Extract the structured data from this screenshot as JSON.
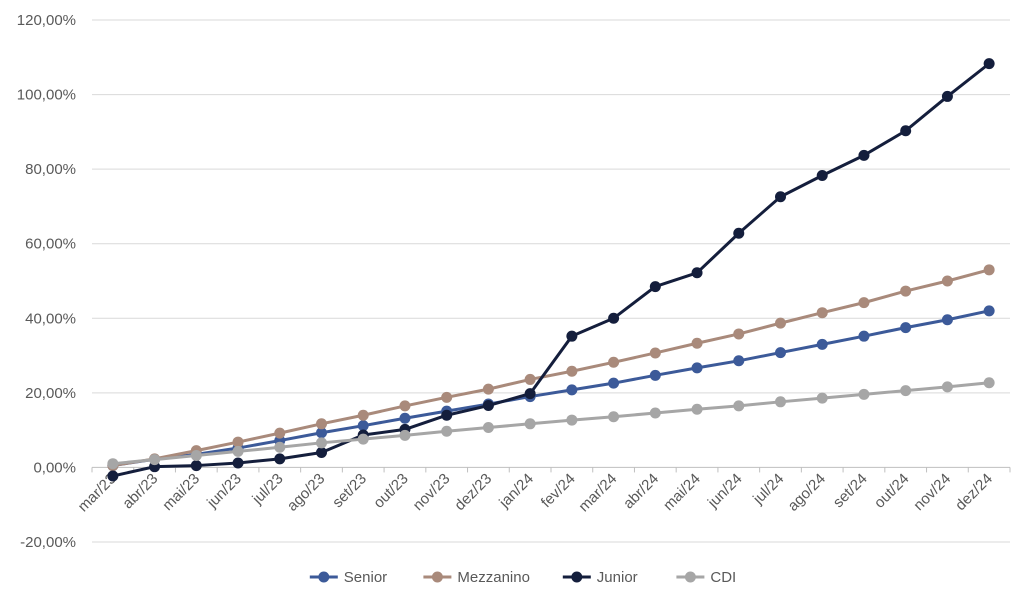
{
  "chart_data": {
    "type": "line",
    "title": "",
    "xlabel": "",
    "ylabel": "",
    "categories": [
      "mar/23",
      "abr/23",
      "mai/23",
      "jun/23",
      "jul/23",
      "ago/23",
      "set/23",
      "out/23",
      "nov/23",
      "dez/23",
      "jan/24",
      "fev/24",
      "mar/24",
      "abr/24",
      "mai/24",
      "jun/24",
      "jul/24",
      "ago/24",
      "set/24",
      "out/24",
      "nov/24",
      "dez/24"
    ],
    "ylim": [
      -20,
      120
    ],
    "yticks": [
      -20,
      0,
      20,
      40,
      60,
      80,
      100,
      120
    ],
    "ytick_labels": [
      "-20,00%",
      "0,00%",
      "20,00%",
      "40,00%",
      "60,00%",
      "80,00%",
      "100,00%",
      "120,00%"
    ],
    "grid": "horizontal",
    "legend_position": "bottom",
    "series": [
      {
        "name": "Senior",
        "color": "#3c5a99",
        "values": [
          0.5,
          2.2,
          3.5,
          5.2,
          7.2,
          9.3,
          11.2,
          13.2,
          15.1,
          17.0,
          19.0,
          20.8,
          22.6,
          24.7,
          26.7,
          28.6,
          30.8,
          33.0,
          35.2,
          37.5,
          39.6,
          42.0
        ]
      },
      {
        "name": "Mezzanino",
        "color": "#a98a7b",
        "values": [
          0.5,
          2.3,
          4.5,
          6.8,
          9.2,
          11.7,
          14.0,
          16.5,
          18.8,
          21.0,
          23.6,
          25.8,
          28.2,
          30.7,
          33.3,
          35.8,
          38.7,
          41.5,
          44.2,
          47.3,
          50.0,
          53.0
        ]
      },
      {
        "name": "Junior",
        "color": "#141e3c",
        "values": [
          -2.3,
          0.2,
          0.5,
          1.2,
          2.3,
          4.0,
          8.7,
          10.2,
          14.0,
          16.6,
          19.8,
          35.2,
          40.0,
          48.5,
          52.2,
          62.8,
          72.6,
          78.3,
          83.7,
          90.3,
          99.5,
          108.3
        ]
      },
      {
        "name": "CDI",
        "color": "#a6a6a6",
        "values": [
          1.0,
          2.1,
          3.2,
          4.3,
          5.4,
          6.6,
          7.6,
          8.6,
          9.7,
          10.7,
          11.7,
          12.7,
          13.6,
          14.6,
          15.6,
          16.5,
          17.6,
          18.6,
          19.6,
          20.6,
          21.6,
          22.7
        ]
      }
    ]
  }
}
